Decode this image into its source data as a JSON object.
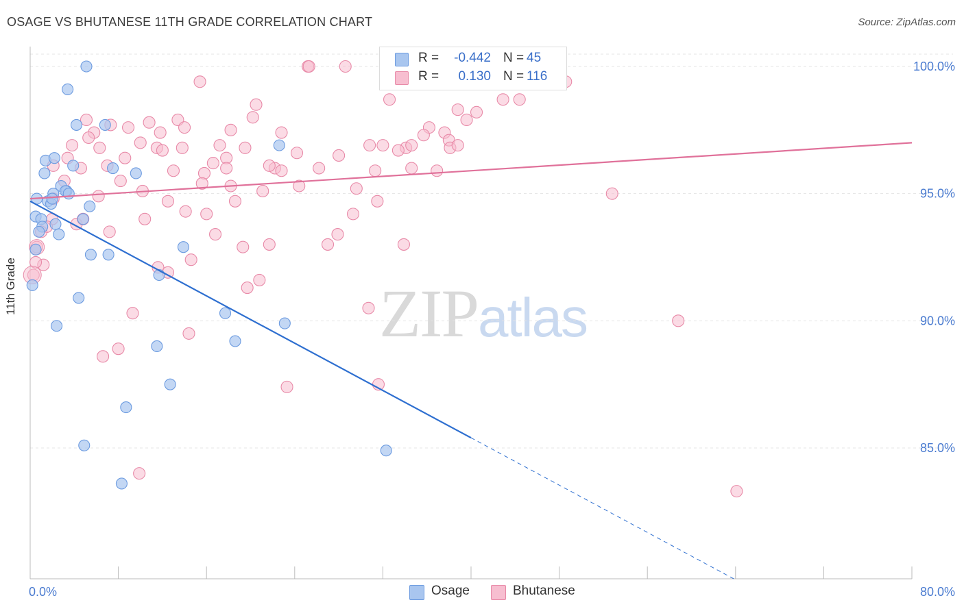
{
  "title": "OSAGE VS BHUTANESE 11TH GRADE CORRELATION CHART",
  "source": "Source: ZipAtlas.com",
  "watermark": {
    "zip": "ZIP",
    "atlas": "atlas"
  },
  "legend": {
    "rows": [
      {
        "r_label": "R =",
        "r_value": "-0.442",
        "n_label": "N =",
        "n_value": "45",
        "color": "#a9c6ef",
        "border": "#6c9be0"
      },
      {
        "r_label": "R =",
        "r_value": "0.130",
        "n_label": "N =",
        "n_value": "116",
        "color": "#f7bed0",
        "border": "#e88aa8"
      }
    ]
  },
  "chart_data": {
    "type": "scatter",
    "title": "OSAGE VS BHUTANESE 11TH GRADE CORRELATION CHART",
    "xlabel": "",
    "ylabel": "11th Grade",
    "xlim": [
      0,
      80
    ],
    "ylim": [
      80,
      100.8
    ],
    "x_tick_labels": [
      "0.0%",
      "80.0%"
    ],
    "y_ticks": [
      85,
      90,
      95,
      100
    ],
    "y_tick_labels": [
      "85.0%",
      "90.0%",
      "95.0%",
      "100.0%"
    ],
    "grid": true,
    "legend_position": "top-center",
    "series": [
      {
        "name": "Osage",
        "color": "#6c9be0",
        "fill": "#a9c6ef",
        "trend": {
          "x0": 0,
          "y0": 94.7,
          "x1": 40,
          "y1": 85.4,
          "dash_to_x": 64
        },
        "points": [
          [
            5.1,
            100
          ],
          [
            3.4,
            99.1
          ],
          [
            4.2,
            97.7
          ],
          [
            6.8,
            97.7
          ],
          [
            1.4,
            96.3
          ],
          [
            2.2,
            96.4
          ],
          [
            3.9,
            96.1
          ],
          [
            1.3,
            95.8
          ],
          [
            7.5,
            96.0
          ],
          [
            9.6,
            95.8
          ],
          [
            2.8,
            95.3
          ],
          [
            3.3,
            95.1
          ],
          [
            2.1,
            95.0
          ],
          [
            3.2,
            95.1
          ],
          [
            0.6,
            94.8
          ],
          [
            1.6,
            94.7
          ],
          [
            1.9,
            94.6
          ],
          [
            5.4,
            94.5
          ],
          [
            0.5,
            94.1
          ],
          [
            1.0,
            94.0
          ],
          [
            4.8,
            94.0
          ],
          [
            2.3,
            93.8
          ],
          [
            1.1,
            93.7
          ],
          [
            0.8,
            93.5
          ],
          [
            2.6,
            93.4
          ],
          [
            0.5,
            92.8
          ],
          [
            13.9,
            92.9
          ],
          [
            5.5,
            92.6
          ],
          [
            7.1,
            92.6
          ],
          [
            11.7,
            91.8
          ],
          [
            0.2,
            91.4
          ],
          [
            4.4,
            90.9
          ],
          [
            17.7,
            90.3
          ],
          [
            23.1,
            89.9
          ],
          [
            2.4,
            89.8
          ],
          [
            18.6,
            89.2
          ],
          [
            11.5,
            89.0
          ],
          [
            12.7,
            87.5
          ],
          [
            8.7,
            86.6
          ],
          [
            4.9,
            85.1
          ],
          [
            32.3,
            84.9
          ],
          [
            8.3,
            83.6
          ],
          [
            3.5,
            95.0
          ],
          [
            2.0,
            94.8
          ],
          [
            22.6,
            96.9
          ]
        ]
      },
      {
        "name": "Bhutanese",
        "color": "#e88aa8",
        "fill": "#f7bed0",
        "trend": {
          "x0": 0,
          "y0": 94.8,
          "x1": 80,
          "y1": 97.0
        },
        "points": [
          [
            25.2,
            100
          ],
          [
            25.3,
            100
          ],
          [
            28.6,
            100
          ],
          [
            43.4,
            100
          ],
          [
            44.3,
            100
          ],
          [
            44.6,
            100
          ],
          [
            46.1,
            100
          ],
          [
            15.4,
            99.4
          ],
          [
            46.9,
            99.4
          ],
          [
            48.6,
            99.4
          ],
          [
            20.5,
            98.5
          ],
          [
            32.6,
            98.7
          ],
          [
            42.9,
            98.7
          ],
          [
            44.4,
            98.7
          ],
          [
            38.8,
            98.3
          ],
          [
            40.5,
            98.2
          ],
          [
            20.2,
            98.0
          ],
          [
            39.6,
            97.9
          ],
          [
            5.1,
            97.9
          ],
          [
            13.4,
            97.9
          ],
          [
            10.8,
            97.8
          ],
          [
            7.3,
            97.7
          ],
          [
            8.9,
            97.6
          ],
          [
            14.0,
            97.6
          ],
          [
            18.2,
            97.5
          ],
          [
            11.8,
            97.4
          ],
          [
            22.8,
            97.4
          ],
          [
            5.8,
            97.4
          ],
          [
            36.2,
            97.6
          ],
          [
            37.6,
            97.4
          ],
          [
            35.7,
            97.3
          ],
          [
            5.3,
            97.2
          ],
          [
            38.0,
            97.1
          ],
          [
            10.0,
            97.0
          ],
          [
            17.2,
            96.9
          ],
          [
            3.8,
            96.9
          ],
          [
            32.0,
            96.9
          ],
          [
            30.8,
            96.9
          ],
          [
            38.1,
            96.8
          ],
          [
            34.1,
            96.8
          ],
          [
            34.6,
            96.9
          ],
          [
            38.8,
            96.9
          ],
          [
            11.5,
            96.8
          ],
          [
            13.8,
            96.8
          ],
          [
            19.5,
            96.8
          ],
          [
            33.4,
            96.7
          ],
          [
            6.3,
            96.8
          ],
          [
            12.0,
            96.7
          ],
          [
            24.2,
            96.6
          ],
          [
            8.6,
            96.4
          ],
          [
            3.4,
            96.4
          ],
          [
            17.8,
            96.4
          ],
          [
            28.0,
            96.5
          ],
          [
            16.6,
            96.2
          ],
          [
            17.8,
            96.0
          ],
          [
            22.2,
            96.0
          ],
          [
            2.1,
            96.1
          ],
          [
            4.6,
            96.0
          ],
          [
            7.0,
            96.1
          ],
          [
            21.7,
            96.1
          ],
          [
            26.2,
            96.0
          ],
          [
            34.6,
            96.0
          ],
          [
            22.8,
            95.9
          ],
          [
            31.3,
            95.9
          ],
          [
            36.9,
            95.9
          ],
          [
            13.0,
            95.9
          ],
          [
            15.8,
            95.8
          ],
          [
            3.1,
            95.5
          ],
          [
            8.2,
            95.5
          ],
          [
            18.2,
            95.3
          ],
          [
            15.6,
            95.4
          ],
          [
            24.4,
            95.3
          ],
          [
            29.6,
            95.2
          ],
          [
            10.2,
            95.1
          ],
          [
            21.1,
            95.1
          ],
          [
            52.8,
            95.0
          ],
          [
            6.2,
            94.9
          ],
          [
            2.1,
            94.8
          ],
          [
            18.6,
            94.7
          ],
          [
            31.5,
            94.7
          ],
          [
            12.5,
            94.7
          ],
          [
            14.1,
            94.3
          ],
          [
            16.0,
            94.2
          ],
          [
            29.3,
            94.2
          ],
          [
            10.4,
            94.0
          ],
          [
            4.2,
            93.8
          ],
          [
            2.0,
            94.0
          ],
          [
            4.8,
            94.0
          ],
          [
            7.2,
            93.5
          ],
          [
            16.8,
            93.4
          ],
          [
            27.9,
            93.4
          ],
          [
            1.5,
            93.7
          ],
          [
            1.0,
            93.5
          ],
          [
            19.3,
            92.9
          ],
          [
            21.7,
            93.0
          ],
          [
            27.0,
            93.0
          ],
          [
            33.9,
            93.0
          ],
          [
            0.6,
            92.9
          ],
          [
            14.6,
            92.4
          ],
          [
            1.2,
            92.2
          ],
          [
            11.6,
            92.1
          ],
          [
            12.5,
            91.9
          ],
          [
            0.5,
            92.3
          ],
          [
            0.3,
            91.8
          ],
          [
            20.8,
            91.6
          ],
          [
            19.7,
            91.3
          ],
          [
            30.7,
            90.5
          ],
          [
            9.3,
            90.3
          ],
          [
            58.8,
            90.0
          ],
          [
            14.4,
            89.5
          ],
          [
            8.0,
            88.9
          ],
          [
            6.6,
            88.6
          ],
          [
            23.3,
            87.4
          ],
          [
            31.6,
            87.5
          ],
          [
            9.9,
            84.0
          ],
          [
            64.1,
            83.3
          ]
        ]
      }
    ]
  }
}
